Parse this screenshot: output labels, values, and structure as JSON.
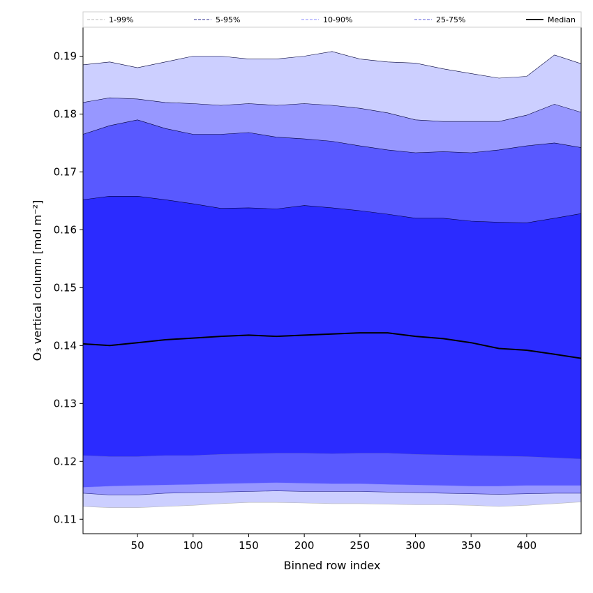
{
  "chart_data": {
    "type": "area",
    "title": "",
    "xlabel": "Binned row index",
    "ylabel": "O₃ vertical column [mol m⁻²]",
    "xlim": [
      1,
      449
    ],
    "ylim": [
      0.1075,
      0.195
    ],
    "x_ticks": [
      50,
      100,
      150,
      200,
      250,
      300,
      350,
      400
    ],
    "y_ticks": [
      0.11,
      0.12,
      0.13,
      0.14,
      0.15,
      0.16,
      0.17,
      0.18,
      0.19
    ],
    "legend_position": "top",
    "grid": false,
    "x": [
      1,
      25,
      50,
      75,
      100,
      125,
      150,
      175,
      200,
      225,
      250,
      275,
      300,
      325,
      350,
      375,
      400,
      425,
      449
    ],
    "bands": [
      {
        "name": "1-99%",
        "color": "#cccfff",
        "line_color": "#b8b8b8",
        "lower": [
          0.1122,
          0.112,
          0.112,
          0.1122,
          0.1124,
          0.1127,
          0.1129,
          0.1129,
          0.1128,
          0.1127,
          0.1127,
          0.1126,
          0.1125,
          0.1125,
          0.1124,
          0.1122,
          0.1124,
          0.1127,
          0.113
        ],
        "upper": [
          0.1885,
          0.189,
          0.188,
          0.189,
          0.19,
          0.19,
          0.1895,
          0.1895,
          0.19,
          0.1908,
          0.1895,
          0.189,
          0.1888,
          0.1878,
          0.187,
          0.1862,
          0.1865,
          0.1902,
          0.1887
        ]
      },
      {
        "name": "5-95%",
        "color": "#9797ff",
        "line_color": "#2b2b8f",
        "lower": [
          0.1145,
          0.1142,
          0.1142,
          0.1145,
          0.1146,
          0.1147,
          0.1148,
          0.1149,
          0.1148,
          0.1148,
          0.1148,
          0.1147,
          0.1146,
          0.1145,
          0.1144,
          0.1143,
          0.1144,
          0.1145,
          0.1145
        ],
        "upper": [
          0.182,
          0.1828,
          0.1826,
          0.182,
          0.1818,
          0.1815,
          0.1818,
          0.1815,
          0.1818,
          0.1815,
          0.181,
          0.1802,
          0.179,
          0.1787,
          0.1787,
          0.1787,
          0.1798,
          0.1817,
          0.1803
        ]
      },
      {
        "name": "10-90%",
        "color": "#5959ff",
        "line_color": "#8a8aff",
        "lower": [
          0.1155,
          0.1157,
          0.1158,
          0.1159,
          0.116,
          0.1161,
          0.1162,
          0.1163,
          0.1162,
          0.1161,
          0.1161,
          0.116,
          0.1159,
          0.1158,
          0.1157,
          0.1157,
          0.1158,
          0.1158,
          0.1158
        ],
        "upper": [
          0.1765,
          0.178,
          0.179,
          0.1775,
          0.1765,
          0.1765,
          0.1768,
          0.176,
          0.1757,
          0.1753,
          0.1745,
          0.1738,
          0.1733,
          0.1735,
          0.1733,
          0.1738,
          0.1745,
          0.175,
          0.1742
        ]
      },
      {
        "name": "25-75%",
        "color": "#2b2bff",
        "line_color": "#5b5bd8",
        "lower": [
          0.121,
          0.1208,
          0.1208,
          0.121,
          0.121,
          0.1212,
          0.1213,
          0.1214,
          0.1214,
          0.1213,
          0.1214,
          0.1214,
          0.1212,
          0.1211,
          0.121,
          0.1209,
          0.1208,
          0.1206,
          0.1204
        ],
        "upper": [
          0.1652,
          0.1658,
          0.1658,
          0.1652,
          0.1645,
          0.1637,
          0.1638,
          0.1636,
          0.1642,
          0.1638,
          0.1633,
          0.1627,
          0.162,
          0.162,
          0.1615,
          0.1613,
          0.1612,
          0.162,
          0.1628
        ]
      }
    ],
    "series": [
      {
        "name": "Median",
        "color": "#000000",
        "values": [
          0.1403,
          0.14,
          0.1405,
          0.141,
          0.1413,
          0.1416,
          0.1418,
          0.1416,
          0.1418,
          0.142,
          0.1422,
          0.1422,
          0.1416,
          0.1412,
          0.1405,
          0.1395,
          0.1392,
          0.1385,
          0.1378
        ]
      }
    ],
    "legend": [
      "1-99%",
      "5-95%",
      "10-90%",
      "25-75%",
      "Median"
    ]
  }
}
